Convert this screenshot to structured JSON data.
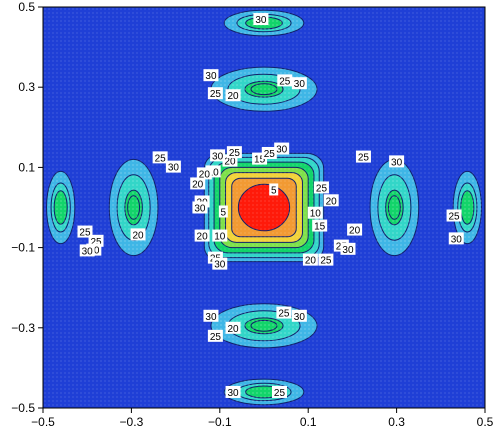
{
  "chart_data": {
    "type": "contour",
    "x_ticks": [
      "-0.5",
      "-0.3",
      "-0.1",
      "0.1",
      "0.3",
      "0.5"
    ],
    "y_ticks": [
      "0.5",
      "0.3",
      "0.1",
      "-0.1",
      "-0.3",
      "-0.5"
    ],
    "xlim": [
      -0.5,
      0.5
    ],
    "ylim": [
      -0.5,
      0.5
    ],
    "contour_levels": [
      "5",
      "10",
      "15",
      "20",
      "25",
      "30"
    ],
    "background_color": "#1f3fd6",
    "level_colors": {
      "outer_30": "#3fb6e6",
      "band_25": "#33d6c8",
      "band_20": "#12d46a",
      "band_15": "#7ee04a",
      "band_10": "#f2d33a",
      "band_5": "#f29a33",
      "core": "#ff1a0a"
    },
    "lobes": [
      {
        "id": "top-small",
        "cx": 0.0,
        "cy": 0.46,
        "rx": 0.09,
        "ry": 0.032,
        "levels": [
          30,
          25
        ]
      },
      {
        "id": "top-large",
        "cx": 0.0,
        "cy": 0.295,
        "rx": 0.12,
        "ry": 0.055,
        "levels": [
          30,
          25,
          20
        ]
      },
      {
        "id": "bottom-large",
        "cx": 0.0,
        "cy": -0.295,
        "rx": 0.12,
        "ry": 0.055,
        "levels": [
          30,
          25,
          20
        ]
      },
      {
        "id": "bottom-small",
        "cx": 0.0,
        "cy": -0.46,
        "rx": 0.09,
        "ry": 0.032,
        "levels": [
          30,
          25
        ]
      },
      {
        "id": "left-large",
        "cx": -0.295,
        "cy": 0.0,
        "rx": 0.055,
        "ry": 0.12,
        "levels": [
          30,
          25,
          20
        ]
      },
      {
        "id": "right-large",
        "cx": 0.295,
        "cy": 0.0,
        "rx": 0.055,
        "ry": 0.12,
        "levels": [
          30,
          25,
          20
        ]
      },
      {
        "id": "left-small",
        "cx": -0.46,
        "cy": 0.0,
        "rx": 0.032,
        "ry": 0.09,
        "levels": [
          30,
          25
        ]
      },
      {
        "id": "right-small",
        "cx": 0.46,
        "cy": 0.0,
        "rx": 0.032,
        "ry": 0.09,
        "levels": [
          30,
          25
        ]
      }
    ],
    "center": {
      "cx": 0.0,
      "cy": 0.0,
      "levels": [
        30,
        25,
        20,
        15,
        10,
        5
      ]
    }
  }
}
